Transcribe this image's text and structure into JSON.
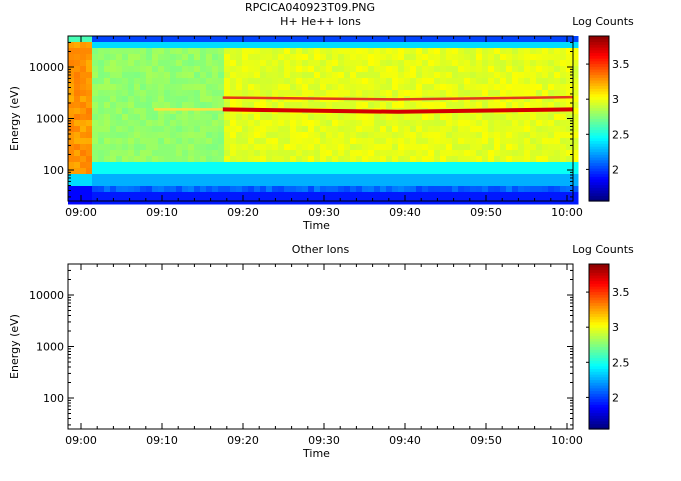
{
  "figure_title": "RPCICA040923T09.PNG",
  "colors": {
    "emission_line": "#d40000",
    "secondary_line": "#e23a1a",
    "weak_line": "#ffe23c",
    "axis": "#000000"
  },
  "chart_data": [
    {
      "type": "heatmap",
      "title": "H+ He++ Ions",
      "xlabel": "Time",
      "ylabel": "Energy (eV)",
      "x_ticks": [
        "09:00",
        "09:10",
        "09:20",
        "09:30",
        "09:40",
        "09:50",
        "10:00"
      ],
      "y_ticks": [
        {
          "value": 100,
          "label": "100"
        },
        {
          "value": 1000,
          "label": "1000"
        },
        {
          "value": 10000,
          "label": "10000"
        }
      ],
      "y_scale": "log",
      "y_range": [
        25,
        40000
      ],
      "x_range_minutes_after_0900": [
        -2,
        61
      ],
      "colorbar": {
        "label": "Log Counts",
        "range": [
          1.55,
          3.9
        ],
        "ticks": [
          {
            "value": 2,
            "label": "2"
          },
          {
            "value": 2.5,
            "label": "2.5"
          },
          {
            "value": 3,
            "label": "3"
          },
          {
            "value": 3.5,
            "label": "3.5"
          }
        ]
      },
      "features": [
        {
          "name": "proton line",
          "x_start_min": 17.5,
          "x_end_min": 61,
          "energy_start": 1500,
          "energy_mid": 1350,
          "energy_end": 1500,
          "log_counts": 3.85
        },
        {
          "name": "upper line",
          "x_start_min": 17.5,
          "x_end_min": 61,
          "energy_start": 2550,
          "energy_mid": 2350,
          "energy_end": 2600,
          "log_counts": 3.45
        },
        {
          "name": "weak line",
          "x_start_min": 9,
          "x_end_min": 17.5,
          "energy": 1500,
          "log_counts": 3.1
        }
      ]
    },
    {
      "type": "heatmap",
      "title": "Other Ions",
      "xlabel": "Time",
      "ylabel": "Energy (eV)",
      "x_ticks": [
        "09:00",
        "09:10",
        "09:20",
        "09:30",
        "09:40",
        "09:50",
        "10:00"
      ],
      "y_ticks": [
        {
          "value": 100,
          "label": "100"
        },
        {
          "value": 1000,
          "label": "1000"
        },
        {
          "value": 10000,
          "label": "10000"
        }
      ],
      "y_scale": "log",
      "y_range": [
        25,
        40000
      ],
      "colorbar": {
        "label": "Log Counts",
        "range": [
          1.55,
          3.9
        ],
        "ticks": [
          {
            "value": 2,
            "label": "2"
          },
          {
            "value": 2.5,
            "label": "2.5"
          },
          {
            "value": 3,
            "label": "3"
          },
          {
            "value": 3.5,
            "label": "3.5"
          }
        ]
      },
      "empty": true
    }
  ]
}
